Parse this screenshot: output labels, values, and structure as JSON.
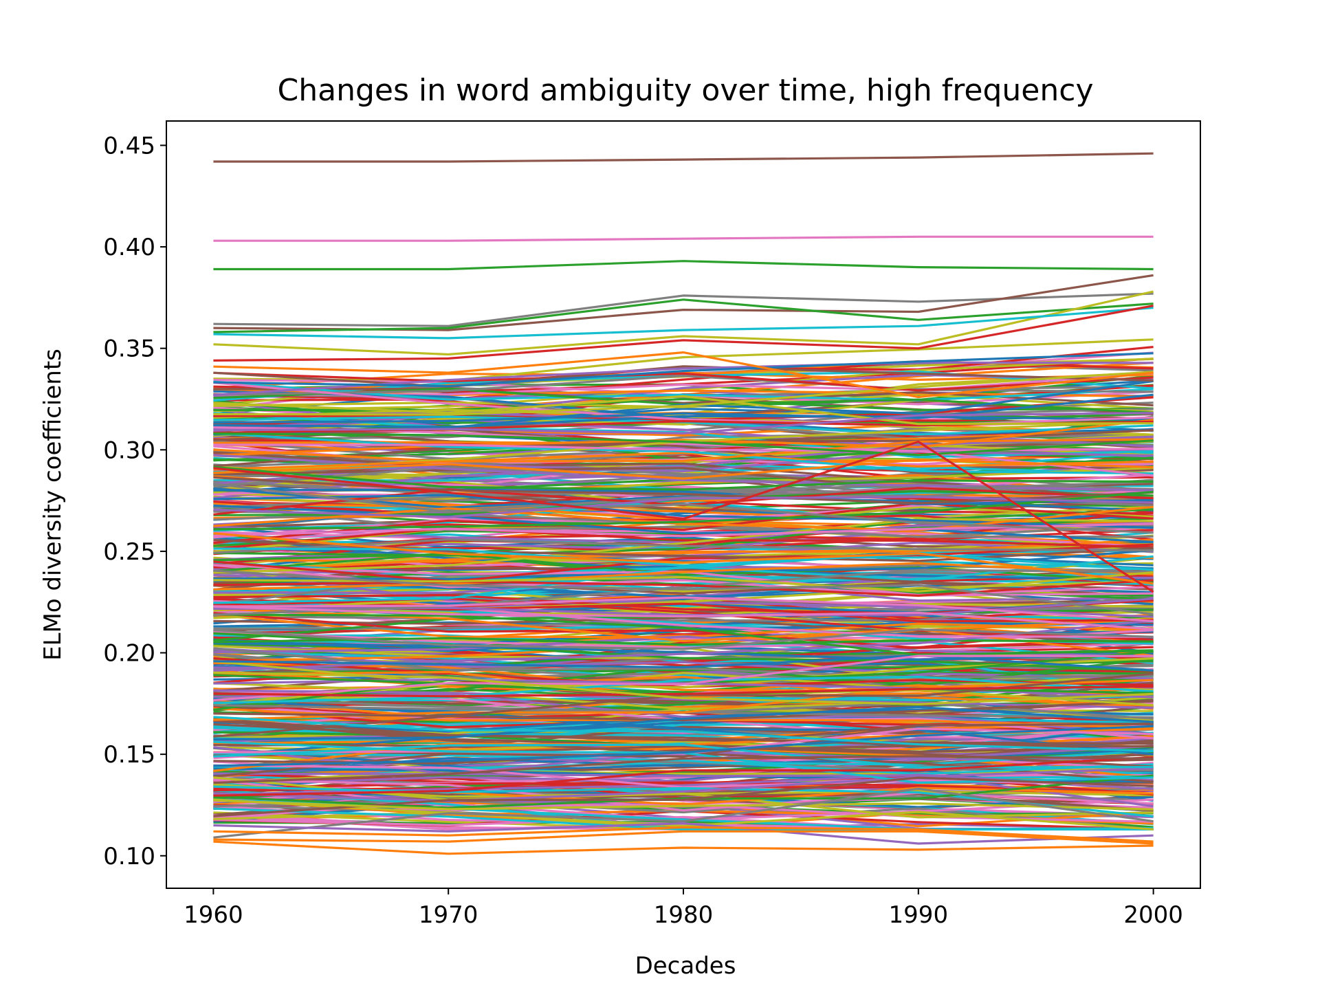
{
  "chart_data": {
    "type": "line",
    "title": "Changes in word ambiguity over time, high frequency",
    "xlabel": "Decades",
    "ylabel": "ELMo diversity coefficients",
    "x": [
      1960,
      1970,
      1980,
      1990,
      2000
    ],
    "xticks": [
      "1960",
      "1970",
      "1980",
      "1990",
      "2000"
    ],
    "yticks": [
      "0.10",
      "0.15",
      "0.20",
      "0.25",
      "0.30",
      "0.35",
      "0.40",
      "0.45"
    ],
    "xlim": [
      1958,
      2002
    ],
    "ylim": [
      0.084,
      0.462
    ],
    "grid": false,
    "legend": "none",
    "palette": [
      "#1f77b4",
      "#ff7f0e",
      "#2ca02c",
      "#d62728",
      "#9467bd",
      "#8c564b",
      "#e377c2",
      "#7f7f7f",
      "#bcbd22",
      "#17becf"
    ],
    "series_count": 600,
    "range_min": 0.101,
    "range_max": 0.446,
    "highlighted_series": [
      {
        "color": "#8c564b",
        "values": [
          0.442,
          0.442,
          0.443,
          0.444,
          0.446
        ]
      },
      {
        "color": "#e377c2",
        "values": [
          0.403,
          0.403,
          0.404,
          0.405,
          0.405
        ]
      },
      {
        "color": "#2ca02c",
        "values": [
          0.389,
          0.389,
          0.393,
          0.39,
          0.389
        ]
      },
      {
        "color": "#7f7f7f",
        "values": [
          0.362,
          0.361,
          0.376,
          0.373,
          0.377
        ]
      },
      {
        "color": "#8c564b",
        "values": [
          0.36,
          0.359,
          0.369,
          0.368,
          0.386
        ]
      },
      {
        "color": "#2ca02c",
        "values": [
          0.358,
          0.36,
          0.374,
          0.364,
          0.372
        ]
      },
      {
        "color": "#bcbd22",
        "values": [
          0.352,
          0.347,
          0.356,
          0.352,
          0.378
        ]
      },
      {
        "color": "#17becf",
        "values": [
          0.357,
          0.355,
          0.359,
          0.361,
          0.37
        ]
      },
      {
        "color": "#d62728",
        "values": [
          0.344,
          0.345,
          0.354,
          0.35,
          0.371
        ]
      },
      {
        "color": "#ff7f0e",
        "values": [
          0.341,
          0.338,
          0.348,
          0.326,
          0.338
        ]
      },
      {
        "color": "#d62728",
        "values": [
          0.291,
          0.279,
          0.266,
          0.304,
          0.23
        ]
      },
      {
        "color": "#7f7f7f",
        "values": [
          0.109,
          0.121,
          0.117,
          0.133,
          0.117
        ]
      },
      {
        "color": "#9467bd",
        "values": [
          0.115,
          0.112,
          0.116,
          0.106,
          0.11
        ]
      },
      {
        "color": "#ff7f0e",
        "values": [
          0.107,
          0.101,
          0.104,
          0.103,
          0.105
        ]
      },
      {
        "color": "#ff7f0e",
        "values": [
          0.108,
          0.107,
          0.112,
          0.112,
          0.106
        ]
      },
      {
        "color": "#ff7f0e",
        "values": [
          0.112,
          0.11,
          0.114,
          0.113,
          0.107
        ]
      }
    ]
  }
}
